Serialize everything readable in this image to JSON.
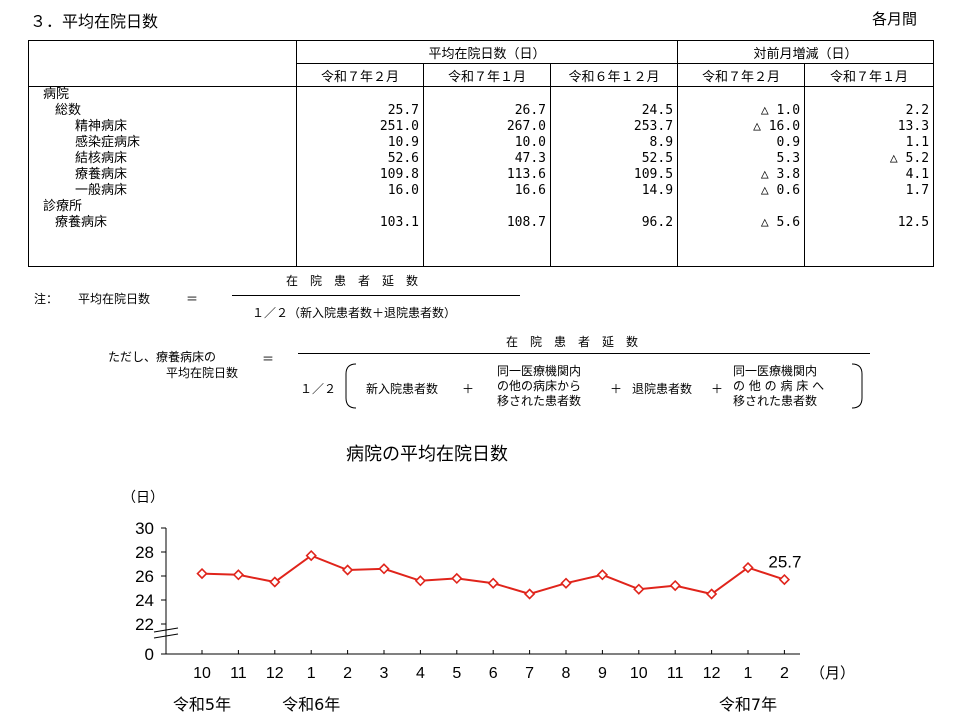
{
  "section_title": "３．平均在院日数",
  "period_label": "各月間",
  "table": {
    "group_headers": [
      "平均在院日数（日）",
      "対前月増減（日）"
    ],
    "col_headers": [
      "令和７年２月",
      "令和７年１月",
      "令和６年１２月",
      "令和７年２月",
      "令和７年１月"
    ],
    "rows": [
      {
        "label": "病院",
        "level": 1,
        "values": [
          "",
          "",
          "",
          "",
          ""
        ]
      },
      {
        "label": "総数",
        "level": 2,
        "values": [
          "25.7",
          "26.7",
          "24.5",
          "△ 1.0",
          "2.2"
        ]
      },
      {
        "label": "精神病床",
        "level": 3,
        "values": [
          "251.0",
          "267.0",
          "253.7",
          "△ 16.0",
          "13.3"
        ]
      },
      {
        "label": "感染症病床",
        "level": 3,
        "values": [
          "10.9",
          "10.0",
          "8.9",
          "0.9",
          "1.1"
        ]
      },
      {
        "label": "結核病床",
        "level": 3,
        "values": [
          "52.6",
          "47.3",
          "52.5",
          "5.3",
          "△ 5.2"
        ]
      },
      {
        "label": "療養病床",
        "level": 3,
        "values": [
          "109.8",
          "113.6",
          "109.5",
          "△ 3.8",
          "4.1"
        ]
      },
      {
        "label": "一般病床",
        "level": 3,
        "values": [
          "16.0",
          "16.6",
          "14.9",
          "△ 0.6",
          "1.7"
        ]
      },
      {
        "label": "診療所",
        "level": 1,
        "values": [
          "",
          "",
          "",
          "",
          ""
        ]
      },
      {
        "label": "療養病床",
        "level": 2,
        "values": [
          "103.1",
          "108.7",
          "96.2",
          "△ 5.6",
          "12.5"
        ]
      }
    ]
  },
  "note": {
    "prefix": "注：",
    "lhs": "平均在院日数",
    "eq": "＝",
    "numerator": "在　院　患　者　延　数",
    "denominator": "１／２（新入院患者数＋退院患者数）"
  },
  "note2": {
    "lhs_line1": "ただし、療養病床の",
    "lhs_line2": "平均在院日数",
    "eq": "＝",
    "numerator": "在　院　患　者　延　数",
    "half": "１／２",
    "term1": "新入院患者数",
    "plus": "＋",
    "term2_line1": "同一医療機関内",
    "term2_line2": "の他の病床から",
    "term2_line3": "移された患者数",
    "term3": "退院患者数",
    "term4_line1": "同一医療機関内",
    "term4_line2": "の 他 の 病 床 へ",
    "term4_line3": "移された患者数"
  },
  "chart_data": {
    "type": "line",
    "title": "病院の平均在院日数",
    "ylabel": "（日）",
    "xlabel": "（月）",
    "y_ticks": [
      "30",
      "28",
      "26",
      "24",
      "22",
      "0"
    ],
    "ylim": [
      22,
      30
    ],
    "y_axis_break": true,
    "categories": [
      "10",
      "11",
      "12",
      "1",
      "2",
      "3",
      "4",
      "5",
      "6",
      "7",
      "8",
      "9",
      "10",
      "11",
      "12",
      "1",
      "2"
    ],
    "year_labels": [
      {
        "label": "令和5年",
        "at_index": 0
      },
      {
        "label": "令和6年",
        "at_index": 3
      },
      {
        "label": "令和7年",
        "at_index": 15
      }
    ],
    "series": [
      {
        "values": [
          26.2,
          26.1,
          25.5,
          27.7,
          26.5,
          26.6,
          25.6,
          25.8,
          25.4,
          24.5,
          25.4,
          26.1,
          24.9,
          25.2,
          24.5,
          26.7,
          25.7
        ],
        "color": "#e0241b",
        "marker": "diamond-open"
      }
    ],
    "annotations": [
      {
        "text": "25.7",
        "at_index": 16
      }
    ],
    "grid": false
  }
}
